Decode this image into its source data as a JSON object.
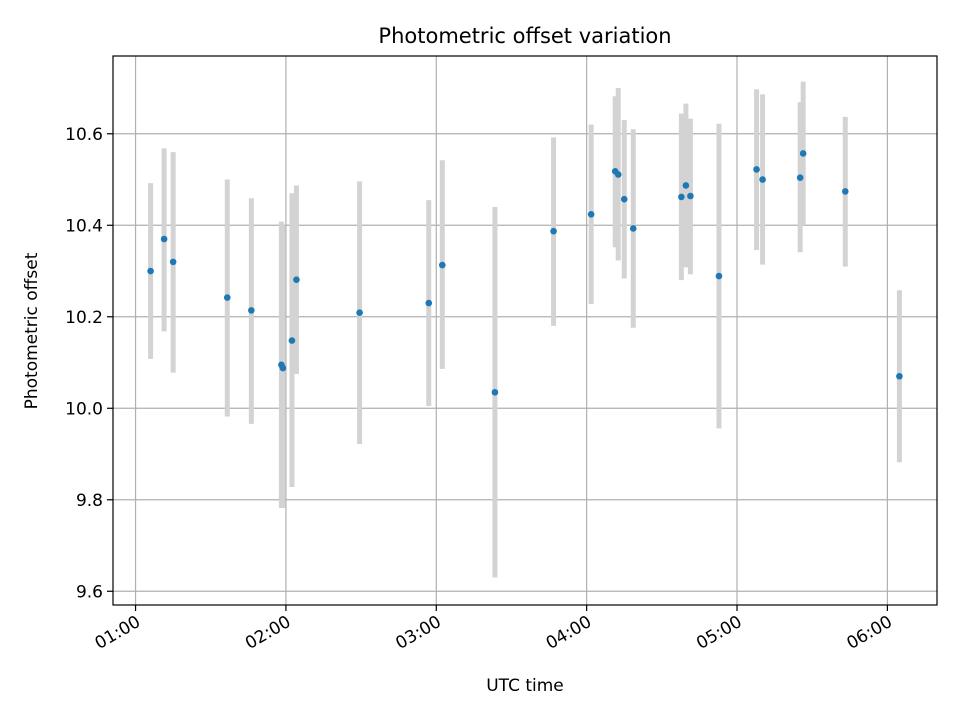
{
  "chart_data": {
    "type": "scatter",
    "title": "Photometric offset variation",
    "xlabel": "UTC time",
    "ylabel": "Photometric offset",
    "xlim_hours": [
      0.85,
      6.33
    ],
    "ylim": [
      9.57,
      10.77
    ],
    "grid": true,
    "marker_color": "#1f77b4",
    "errorbar_color": "#d3d3d3",
    "x_ticks": [
      {
        "value": 1,
        "label": "01:00"
      },
      {
        "value": 2,
        "label": "02:00"
      },
      {
        "value": 3,
        "label": "03:00"
      },
      {
        "value": 4,
        "label": "04:00"
      },
      {
        "value": 5,
        "label": "05:00"
      },
      {
        "value": 6,
        "label": "06:00"
      }
    ],
    "y_ticks": [
      {
        "value": 9.6,
        "label": "9.6"
      },
      {
        "value": 9.8,
        "label": "9.8"
      },
      {
        "value": 10.0,
        "label": "10.0"
      },
      {
        "value": 10.2,
        "label": "10.2"
      },
      {
        "value": 10.4,
        "label": "10.4"
      },
      {
        "value": 10.6,
        "label": "10.6"
      }
    ],
    "points": [
      {
        "x": 1.1,
        "y": 10.3,
        "lo": 10.108,
        "hi": 10.492
      },
      {
        "x": 1.19,
        "y": 10.37,
        "lo": 10.168,
        "hi": 10.568
      },
      {
        "x": 1.25,
        "y": 10.32,
        "lo": 10.078,
        "hi": 10.56
      },
      {
        "x": 1.61,
        "y": 10.242,
        "lo": 9.982,
        "hi": 10.5
      },
      {
        "x": 1.77,
        "y": 10.214,
        "lo": 9.966,
        "hi": 10.459
      },
      {
        "x": 1.97,
        "y": 10.095,
        "lo": 9.782,
        "hi": 10.408
      },
      {
        "x": 1.98,
        "y": 10.088,
        "lo": 9.782,
        "hi": 10.4
      },
      {
        "x": 2.04,
        "y": 10.148,
        "lo": 9.828,
        "hi": 10.47
      },
      {
        "x": 2.07,
        "y": 10.281,
        "lo": 10.075,
        "hi": 10.487
      },
      {
        "x": 2.49,
        "y": 10.209,
        "lo": 9.922,
        "hi": 10.496
      },
      {
        "x": 2.95,
        "y": 10.23,
        "lo": 10.005,
        "hi": 10.455
      },
      {
        "x": 3.04,
        "y": 10.313,
        "lo": 10.086,
        "hi": 10.542
      },
      {
        "x": 3.39,
        "y": 10.035,
        "lo": 9.63,
        "hi": 10.44
      },
      {
        "x": 3.78,
        "y": 10.387,
        "lo": 10.18,
        "hi": 10.592
      },
      {
        "x": 4.03,
        "y": 10.424,
        "lo": 10.228,
        "hi": 10.62
      },
      {
        "x": 4.19,
        "y": 10.518,
        "lo": 10.352,
        "hi": 10.682
      },
      {
        "x": 4.21,
        "y": 10.511,
        "lo": 10.323,
        "hi": 10.7
      },
      {
        "x": 4.25,
        "y": 10.457,
        "lo": 10.284,
        "hi": 10.63
      },
      {
        "x": 4.31,
        "y": 10.393,
        "lo": 10.176,
        "hi": 10.61
      },
      {
        "x": 4.63,
        "y": 10.462,
        "lo": 10.28,
        "hi": 10.644
      },
      {
        "x": 4.66,
        "y": 10.487,
        "lo": 10.308,
        "hi": 10.666
      },
      {
        "x": 4.69,
        "y": 10.464,
        "lo": 10.293,
        "hi": 10.633
      },
      {
        "x": 4.88,
        "y": 10.289,
        "lo": 9.956,
        "hi": 10.622
      },
      {
        "x": 5.13,
        "y": 10.522,
        "lo": 10.346,
        "hi": 10.697
      },
      {
        "x": 5.17,
        "y": 10.5,
        "lo": 10.314,
        "hi": 10.686
      },
      {
        "x": 5.42,
        "y": 10.504,
        "lo": 10.341,
        "hi": 10.669
      },
      {
        "x": 5.44,
        "y": 10.557,
        "lo": 10.4,
        "hi": 10.714
      },
      {
        "x": 5.72,
        "y": 10.474,
        "lo": 10.31,
        "hi": 10.637
      },
      {
        "x": 6.08,
        "y": 10.07,
        "lo": 9.882,
        "hi": 10.258
      }
    ]
  }
}
